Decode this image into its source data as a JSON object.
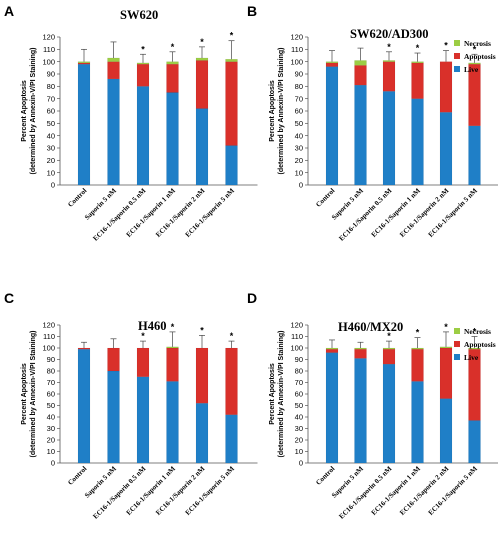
{
  "colors": {
    "live": "#1f7fc7",
    "apoptosis": "#d9302a",
    "necrosis": "#9ccd44"
  },
  "ylabel_line1": "Percent Apoptosis",
  "ylabel_line2": "(determined by Annexin-V/PI Staining)",
  "chart_data": [
    {
      "type": "bar",
      "panel": "A",
      "title": "SW620",
      "categories": [
        "Control",
        "Saporin 5 nM",
        "EC16-1/Saporin 0.5 nM",
        "EC16-1/Saporin 1 nM",
        "EC16-1/Saporin 2 nM",
        "EC16-1/Saporin 5 nM"
      ],
      "stacked": true,
      "series": [
        {
          "name": "Live",
          "values": [
            98,
            86,
            80,
            75,
            62,
            32
          ]
        },
        {
          "name": "Apoptosis",
          "values": [
            1,
            14,
            18,
            23,
            39,
            68
          ]
        },
        {
          "name": "Necrosis",
          "values": [
            1,
            3,
            1,
            2,
            2,
            2
          ]
        }
      ],
      "error": [
        10,
        13,
        7,
        8,
        9,
        15
      ],
      "significant": [
        false,
        false,
        true,
        true,
        true,
        true
      ],
      "ylim": [
        0,
        120
      ],
      "yticks": [
        "0",
        "10",
        "20",
        "30",
        "40",
        "50",
        "60",
        "70",
        "80",
        "90",
        "100",
        "110",
        "120"
      ],
      "legend": false
    },
    {
      "type": "bar",
      "panel": "B",
      "title": "SW620/AD300",
      "categories": [
        "Control",
        "Saporin 5 nM",
        "EC16-1/Saporin 0.5 nM",
        "EC16-1/Saporin 1 nM",
        "EC16-1/Saporin 2 nM",
        "EC16-1/Saporin 5 nM"
      ],
      "stacked": true,
      "series": [
        {
          "name": "Live",
          "values": [
            96,
            81,
            76,
            70,
            59,
            48
          ]
        },
        {
          "name": "Apoptosis",
          "values": [
            3,
            16,
            24,
            29,
            41,
            50
          ]
        },
        {
          "name": "Necrosis",
          "values": [
            1,
            4,
            1,
            1,
            0,
            1
          ]
        }
      ],
      "error": [
        9,
        10,
        7,
        7,
        9,
        7
      ],
      "significant": [
        false,
        false,
        true,
        true,
        true,
        true
      ],
      "ylim": [
        0,
        120
      ],
      "yticks": [
        "0",
        "10",
        "20",
        "30",
        "40",
        "50",
        "60",
        "70",
        "80",
        "90",
        "100",
        "110",
        "120"
      ],
      "legend": true,
      "legend_position": "top-right"
    },
    {
      "type": "bar",
      "panel": "C",
      "title": "H460",
      "categories": [
        "Control",
        "Saporin 5 nM",
        "EC16-1/Saporin 0.5 nM",
        "EC16-1/Saporin 1 nM",
        "EC16-1/Saporin 2 nM",
        "EC16-1/Saporin 5 nM"
      ],
      "stacked": true,
      "series": [
        {
          "name": "Live",
          "values": [
            99,
            80,
            75,
            71,
            52,
            42
          ]
        },
        {
          "name": "Apoptosis",
          "values": [
            1,
            20,
            25,
            29,
            48,
            58
          ]
        },
        {
          "name": "Necrosis",
          "values": [
            0,
            0,
            0,
            1,
            0,
            0
          ]
        }
      ],
      "error": [
        5,
        8,
        6,
        13,
        11,
        6
      ],
      "significant": [
        false,
        false,
        true,
        true,
        true,
        true
      ],
      "ylim": [
        0,
        120
      ],
      "yticks": [
        "0",
        "10",
        "20",
        "30",
        "40",
        "50",
        "60",
        "70",
        "80",
        "90",
        "100",
        "110",
        "120"
      ],
      "legend": false
    },
    {
      "type": "bar",
      "panel": "D",
      "title": "H460/MX20",
      "categories": [
        "Control",
        "Saporin 5 nM",
        "EC16-1/Saporin 0.5 nM",
        "EC16-1/Saporin 1 nM",
        "EC16-1/Saporin 2 nM",
        "EC16-1/Saporin 5 nM"
      ],
      "stacked": true,
      "series": [
        {
          "name": "Live",
          "values": [
            96,
            91,
            86,
            71,
            56,
            37
          ]
        },
        {
          "name": "Apoptosis",
          "values": [
            3,
            8,
            13,
            28,
            44,
            62
          ]
        },
        {
          "name": "Necrosis",
          "values": [
            1,
            1,
            1,
            1,
            1,
            1
          ]
        }
      ],
      "error": [
        7,
        5,
        6,
        9,
        13,
        10
      ],
      "significant": [
        false,
        false,
        true,
        true,
        true,
        true
      ],
      "ylim": [
        0,
        120
      ],
      "yticks": [
        "0",
        "10",
        "20",
        "30",
        "40",
        "50",
        "60",
        "70",
        "80",
        "90",
        "100",
        "110",
        "120"
      ],
      "legend": true,
      "legend_position": "top-right"
    }
  ]
}
